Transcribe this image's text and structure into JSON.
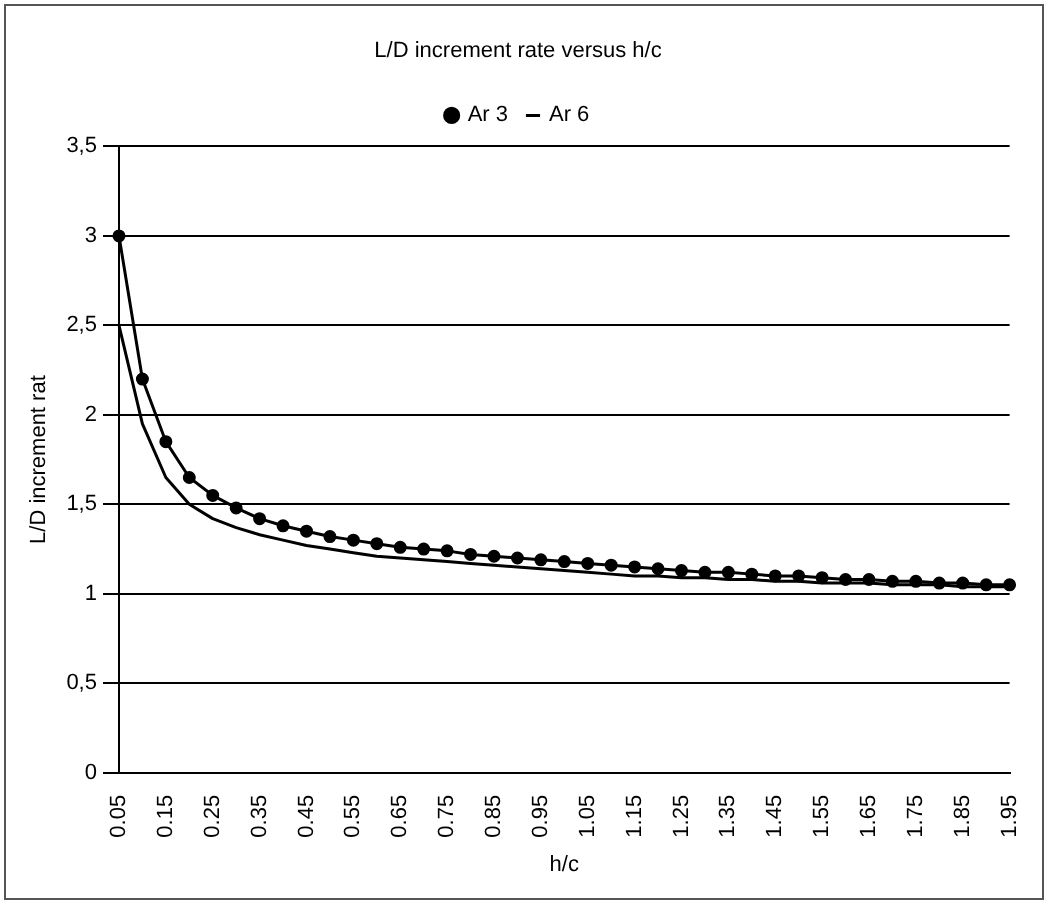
{
  "chart_data": {
    "type": "line",
    "title": "L/D increment rate versus h/c",
    "xlabel": "h/c",
    "ylabel": "L/D increment rat",
    "categories": [
      "0.05",
      null,
      "0.15",
      null,
      "0.25",
      null,
      "0.35",
      null,
      "0.45",
      null,
      "0.55",
      null,
      "0.65",
      null,
      "0.75",
      null,
      "0.85",
      null,
      "0.95",
      null,
      "1.05",
      null,
      "1.15",
      null,
      "1.25",
      null,
      "1.35",
      null,
      "1.45",
      null,
      "1.55",
      null,
      "1.65",
      null,
      "1.75",
      null,
      "1.85",
      null,
      "1.95"
    ],
    "series": [
      {
        "name": "Ar 3",
        "color": "#000000",
        "marker": "circle",
        "values": [
          3.0,
          2.2,
          1.85,
          1.65,
          1.55,
          1.48,
          1.42,
          1.38,
          1.35,
          1.32,
          1.3,
          1.28,
          1.26,
          1.25,
          1.24,
          1.22,
          1.21,
          1.2,
          1.19,
          1.18,
          1.17,
          1.16,
          1.15,
          1.14,
          1.13,
          1.12,
          1.12,
          1.11,
          1.1,
          1.1,
          1.09,
          1.08,
          1.08,
          1.07,
          1.07,
          1.06,
          1.06,
          1.05,
          1.05
        ]
      },
      {
        "name": "Ar 6",
        "color": "#000000",
        "marker": "none",
        "values": [
          2.5,
          1.95,
          1.65,
          1.5,
          1.42,
          1.37,
          1.33,
          1.3,
          1.27,
          1.25,
          1.23,
          1.21,
          1.2,
          1.19,
          1.18,
          1.17,
          1.16,
          1.15,
          1.14,
          1.13,
          1.12,
          1.11,
          1.1,
          1.1,
          1.09,
          1.09,
          1.08,
          1.08,
          1.07,
          1.07,
          1.06,
          1.06,
          1.06,
          1.05,
          1.05,
          1.05,
          1.04,
          1.04,
          1.04
        ]
      }
    ],
    "ylim": [
      0,
      3.5
    ],
    "yticks": [
      0,
      {
        "value": 0.5,
        "label": "0,5"
      },
      1,
      {
        "value": 1.5,
        "label": "1,5"
      },
      2,
      {
        "value": 2.5,
        "label": "2,5"
      },
      3,
      {
        "value": 3.5,
        "label": "3,5"
      }
    ],
    "grid": "y",
    "legend": "top"
  }
}
